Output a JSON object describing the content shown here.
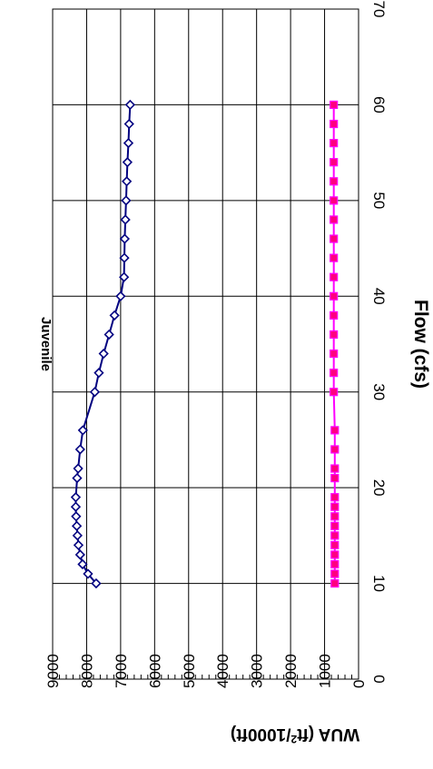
{
  "chart_data": {
    "type": "line",
    "orientation": "rotated-90-clockwise",
    "title": "Juvenile",
    "xlabel": "Flow (cfs)",
    "ylabel_prefix": "WUA (ft",
    "ylabel_sup": "2",
    "ylabel_suffix": "/1000ft)",
    "xlim": [
      0,
      70
    ],
    "ylim": [
      0,
      9000
    ],
    "x_ticks": [
      "0",
      "10",
      "20",
      "30",
      "40",
      "50",
      "60",
      "70"
    ],
    "y_ticks": [
      "0",
      "1000",
      "2000",
      "3000",
      "4000",
      "5000",
      "6000",
      "7000",
      "8000",
      "9000"
    ],
    "grid": true,
    "legend": "none",
    "series": [
      {
        "color": "#000080",
        "marker": "diamond",
        "x": [
          10,
          11,
          12,
          13,
          14,
          15,
          16,
          17,
          18,
          19,
          21,
          22,
          24,
          26,
          30,
          32,
          34,
          36,
          38,
          40,
          42,
          44,
          46,
          48,
          50,
          52,
          54,
          56,
          58,
          60
        ],
        "y": [
          7720,
          7960,
          8120,
          8190,
          8240,
          8270,
          8290,
          8310,
          8320,
          8320,
          8280,
          8250,
          8190,
          8110,
          7760,
          7640,
          7500,
          7340,
          7180,
          7000,
          6900,
          6890,
          6880,
          6860,
          6840,
          6820,
          6800,
          6770,
          6750,
          6720
        ]
      },
      {
        "color": "#ff00ff",
        "marker": "square",
        "x": [
          10,
          11,
          12,
          13,
          14,
          15,
          16,
          17,
          18,
          19,
          21,
          22,
          24,
          26,
          30,
          32,
          34,
          36,
          38,
          40,
          42,
          44,
          46,
          48,
          50,
          52,
          54,
          56,
          58,
          60
        ],
        "y": [
          700,
          700,
          700,
          700,
          700,
          700,
          700,
          700,
          700,
          700,
          700,
          700,
          700,
          700,
          730,
          730,
          730,
          730,
          730,
          730,
          730,
          730,
          730,
          730,
          730,
          730,
          730,
          730,
          730,
          730
        ]
      }
    ]
  }
}
